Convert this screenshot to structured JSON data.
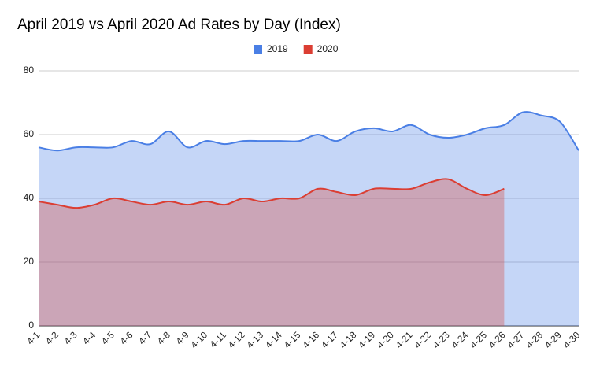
{
  "chart_data": {
    "type": "area",
    "title": "April 2019 vs April 2020 Ad Rates by Day (Index)",
    "categories": [
      "4-1",
      "4-2",
      "4-3",
      "4-4",
      "4-5",
      "4-6",
      "4-7",
      "4-8",
      "4-9",
      "4-10",
      "4-11",
      "4-12",
      "4-13",
      "4-14",
      "4-15",
      "4-16",
      "4-17",
      "4-18",
      "4-19",
      "4-20",
      "4-21",
      "4-22",
      "4-23",
      "4-24",
      "4-25",
      "4-26",
      "4-27",
      "4-28",
      "4-29",
      "4-30"
    ],
    "series": [
      {
        "name": "2019",
        "color": "#4a7fe5",
        "values": [
          56,
          55,
          56,
          56,
          56,
          58,
          57,
          61,
          56,
          58,
          57,
          58,
          58,
          58,
          58,
          60,
          58,
          61,
          62,
          61,
          63,
          60,
          59,
          60,
          62,
          63,
          67,
          66,
          64,
          55
        ]
      },
      {
        "name": "2020",
        "color": "#db3e33",
        "values": [
          39,
          38,
          37,
          38,
          40,
          39,
          38,
          39,
          38,
          39,
          38,
          40,
          39,
          40,
          40,
          43,
          42,
          41,
          43,
          43,
          43,
          45,
          46,
          43,
          41,
          43,
          null,
          null,
          null,
          null
        ]
      }
    ],
    "ylim": [
      0,
      80
    ],
    "yticks": [
      0,
      20,
      40,
      60,
      80
    ],
    "grid": true,
    "legend": "top"
  }
}
